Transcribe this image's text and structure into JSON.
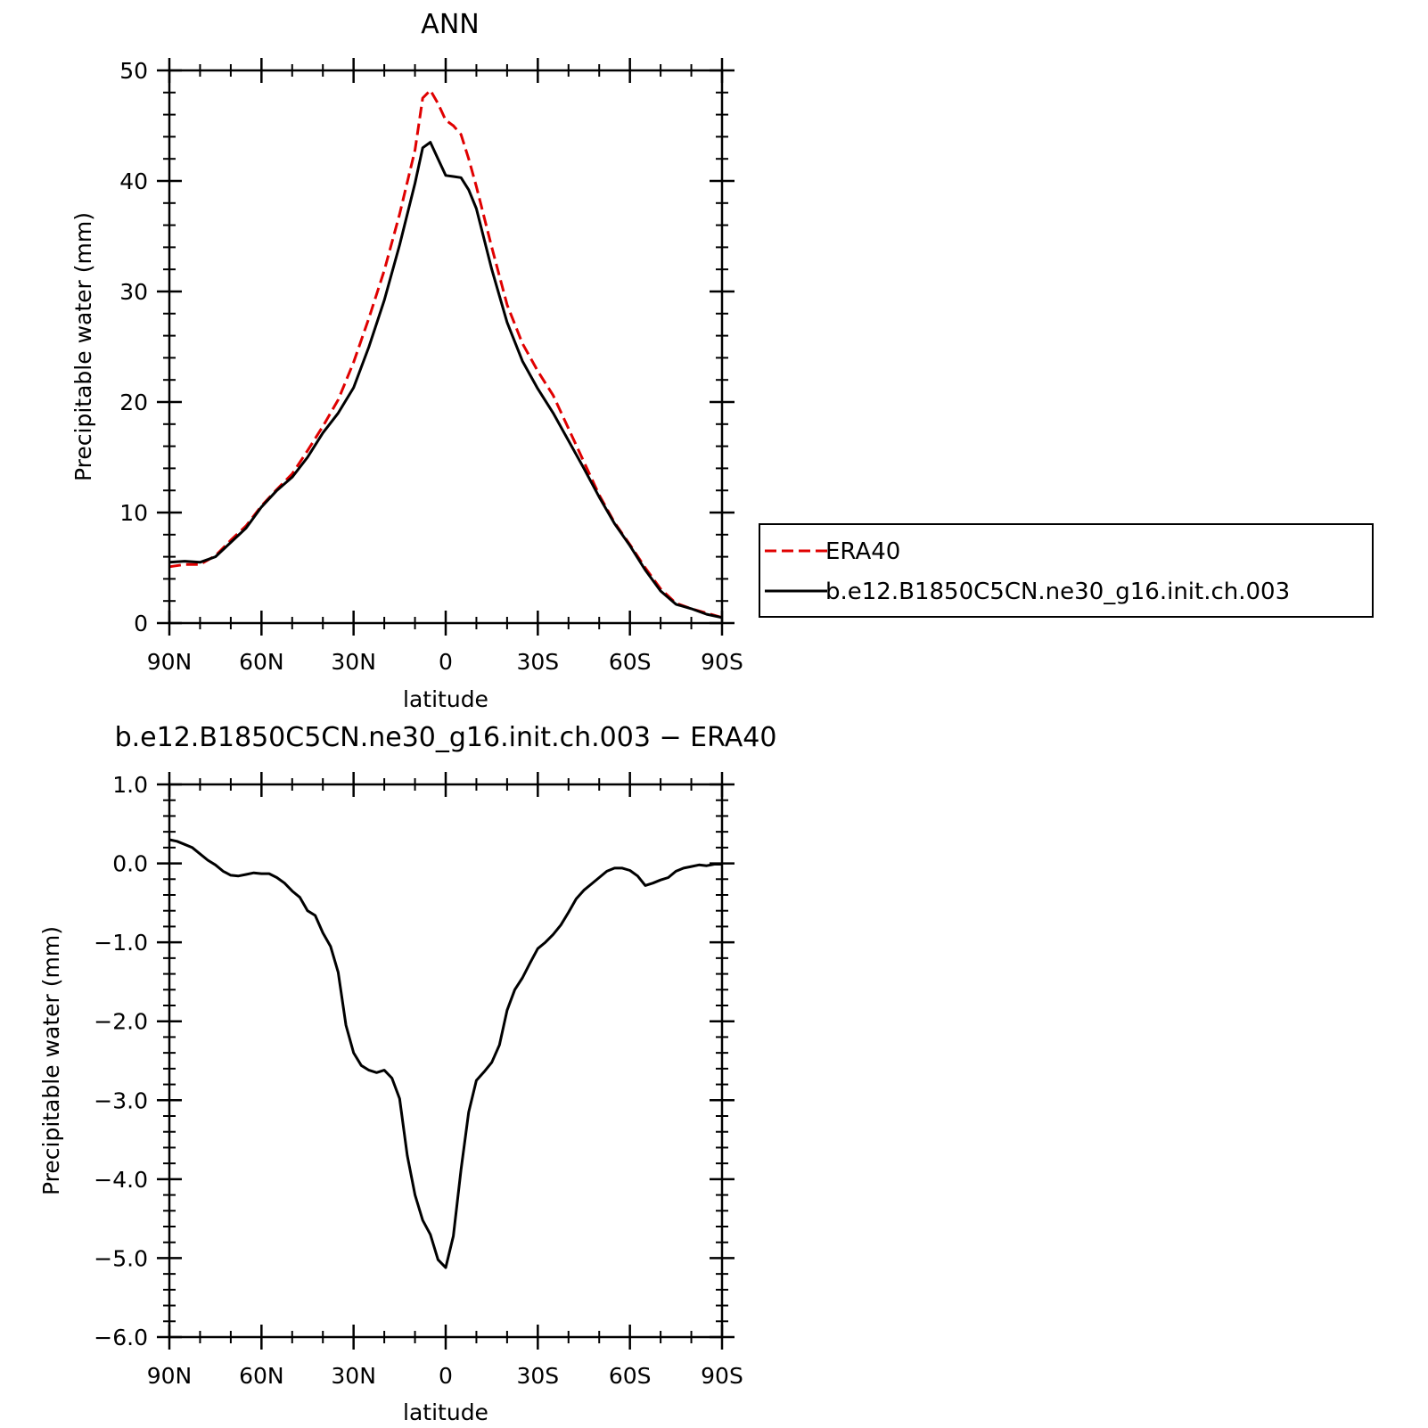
{
  "chart_data": [
    {
      "type": "line",
      "title": "ANN",
      "xlabel": "latitude",
      "ylabel": "Precipitable water (mm)",
      "xlim": [
        90,
        -90
      ],
      "ylim": [
        0,
        50
      ],
      "x_ticks": [
        90,
        60,
        30,
        0,
        -30,
        -60,
        -90
      ],
      "x_tick_labels": [
        "90N",
        "60N",
        "30N",
        "0",
        "30S",
        "60S",
        "90S"
      ],
      "y_ticks": [
        0,
        10,
        20,
        30,
        40,
        50
      ],
      "y_tick_labels": [
        "0",
        "10",
        "20",
        "30",
        "40",
        "50"
      ],
      "legend_position": "right",
      "series": [
        {
          "name": "ERA40",
          "color": "#e00000",
          "style": "dashed",
          "x": [
            90,
            85,
            80,
            75,
            70,
            65,
            60,
            55,
            50,
            45,
            40,
            35,
            30,
            25,
            20,
            15,
            10,
            7.5,
            5,
            2.5,
            0,
            -2.5,
            -5,
            -7.5,
            -10,
            -15,
            -20,
            -25,
            -30,
            -35,
            -40,
            -45,
            -50,
            -55,
            -60,
            -65,
            -70,
            -75,
            -80,
            -85,
            -90
          ],
          "y": [
            5.1,
            5.3,
            5.3,
            6.1,
            7.5,
            8.8,
            10.6,
            12.1,
            13.5,
            15.6,
            17.8,
            20.2,
            23.6,
            27.6,
            31.9,
            37.0,
            42.8,
            47.5,
            48.2,
            47.0,
            45.5,
            45.0,
            44.2,
            42.0,
            39.5,
            34.0,
            28.8,
            25.3,
            22.8,
            20.6,
            17.6,
            14.6,
            11.6,
            9.1,
            7.1,
            5.0,
            3.1,
            1.8,
            1.3,
            0.9,
            0.5
          ]
        },
        {
          "name": "b.e12.B1850C5CN.ne30_g16.init.ch.003",
          "color": "#000000",
          "style": "solid",
          "x": [
            90,
            85,
            80,
            75,
            70,
            65,
            60,
            55,
            50,
            45,
            40,
            35,
            30,
            25,
            20,
            15,
            10,
            7.5,
            5,
            2.5,
            0,
            -2.5,
            -5,
            -7.5,
            -10,
            -15,
            -20,
            -25,
            -30,
            -35,
            -40,
            -45,
            -50,
            -55,
            -60,
            -65,
            -70,
            -75,
            -80,
            -85,
            -90
          ],
          "y": [
            5.5,
            5.6,
            5.5,
            6.0,
            7.3,
            8.6,
            10.5,
            12.0,
            13.2,
            15.0,
            17.2,
            19.0,
            21.3,
            25.0,
            29.2,
            34.2,
            39.8,
            43.0,
            43.5,
            42.0,
            40.5,
            40.4,
            40.3,
            39.2,
            37.5,
            32.0,
            27.2,
            23.7,
            21.2,
            19.0,
            16.5,
            14.0,
            11.4,
            9.0,
            7.0,
            4.8,
            2.9,
            1.7,
            1.3,
            0.8,
            0.5
          ]
        }
      ]
    },
    {
      "type": "line",
      "title": "b.e12.B1850C5CN.ne30_g16.init.ch.003 − ERA40",
      "xlabel": "latitude",
      "ylabel": "Precipitable water (mm)",
      "xlim": [
        90,
        -90
      ],
      "ylim": [
        -6,
        1
      ],
      "x_ticks": [
        90,
        60,
        30,
        0,
        -30,
        -60,
        -90
      ],
      "x_tick_labels": [
        "90N",
        "60N",
        "30N",
        "0",
        "30S",
        "60S",
        "90S"
      ],
      "y_ticks": [
        -6,
        -5,
        -4,
        -3,
        -2,
        -1,
        0,
        1
      ],
      "y_tick_labels": [
        "−6.0",
        "−5.0",
        "−4.0",
        "−3.0",
        "−2.0",
        "−1.0",
        "0.0",
        "1.0"
      ],
      "series": [
        {
          "color": "#000000",
          "style": "solid",
          "x": [
            90,
            87.5,
            85,
            82.5,
            80,
            77.5,
            75,
            72.5,
            70,
            67.5,
            65,
            62.5,
            60,
            57.5,
            55,
            52.5,
            50,
            47.5,
            45,
            42.5,
            40,
            37.5,
            35,
            32.5,
            30,
            27.5,
            25,
            22.5,
            20,
            17.5,
            15,
            12.5,
            10,
            7.5,
            5,
            2.5,
            0,
            -2.5,
            -5,
            -7.5,
            -10,
            -12.5,
            -15,
            -17.5,
            -20,
            -22.5,
            -25,
            -27.5,
            -30,
            -32.5,
            -35,
            -37.5,
            -40,
            -42.5,
            -45,
            -47.5,
            -50,
            -52.5,
            -55,
            -57.5,
            -60,
            -62.5,
            -65,
            -67.5,
            -70,
            -72.5,
            -75,
            -77.5,
            -80,
            -82.5,
            -85,
            -87.5,
            -90
          ],
          "y": [
            0.3,
            0.28,
            0.24,
            0.2,
            0.12,
            0.04,
            -0.02,
            -0.1,
            -0.15,
            -0.16,
            -0.14,
            -0.12,
            -0.13,
            -0.13,
            -0.18,
            -0.25,
            -0.35,
            -0.43,
            -0.6,
            -0.66,
            -0.88,
            -1.05,
            -1.38,
            -2.05,
            -2.4,
            -2.56,
            -2.62,
            -2.65,
            -2.62,
            -2.72,
            -2.98,
            -3.7,
            -4.2,
            -4.52,
            -4.7,
            -5.02,
            -5.12,
            -4.72,
            -3.88,
            -3.15,
            -2.75,
            -2.64,
            -2.52,
            -2.3,
            -1.86,
            -1.6,
            -1.45,
            -1.26,
            -1.08,
            -1.0,
            -0.9,
            -0.78,
            -0.62,
            -0.45,
            -0.34,
            -0.26,
            -0.18,
            -0.1,
            -0.06,
            -0.06,
            -0.09,
            -0.16,
            -0.28,
            -0.25,
            -0.21,
            -0.18,
            -0.1,
            -0.06,
            -0.04,
            -0.02,
            -0.03,
            -0.01,
            -0.01
          ]
        }
      ]
    }
  ]
}
